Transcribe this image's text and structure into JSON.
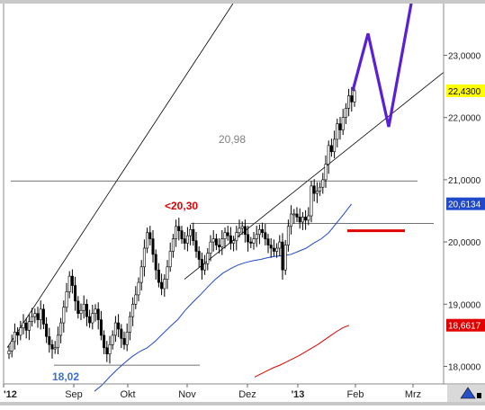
{
  "chart_data": {
    "type": "candlestick",
    "title": "",
    "xlabel": "",
    "ylabel": "",
    "ylim": [
      17.75,
      24.1
    ],
    "x_ticks": [
      "'12",
      "Sep",
      "Okt",
      "Nov",
      "Dez",
      "'13",
      "Feb",
      "Mrz"
    ],
    "y_ticks": [
      "18,0000",
      "19,0000",
      "20,0000",
      "21,0000",
      "22,0000",
      "23,0000"
    ],
    "y_tick_values": [
      18.0,
      19.0,
      20.0,
      21.0,
      22.0,
      23.0
    ],
    "price_tags": [
      {
        "label": "22,4300",
        "value": 22.43,
        "color": "#ffff00",
        "text_color": "#000000"
      },
      {
        "label": "20,6134",
        "value": 20.6134,
        "color": "#1f49c8",
        "text_color": "#ffffff"
      },
      {
        "label": "18,6617",
        "value": 18.6617,
        "color": "#e00000",
        "text_color": "#ffffff"
      }
    ],
    "annotations": [
      {
        "text": "20,98",
        "value": 20.98,
        "color": "#808080"
      },
      {
        "text": "<20,30",
        "value": 20.3,
        "color": "#e00000"
      },
      {
        "text": "18,02",
        "value": 18.02,
        "color": "#3a6fd0"
      }
    ],
    "horizontal_levels": [
      20.98,
      20.3,
      18.02
    ],
    "red_support_level": 20.18,
    "price_series": {
      "name": "",
      "color": "#000000",
      "close": [
        18.25,
        18.4,
        18.55,
        18.5,
        18.62,
        18.7,
        18.58,
        18.72,
        18.8,
        18.85,
        18.75,
        18.92,
        18.68,
        18.48,
        18.35,
        18.28,
        18.3,
        18.5,
        18.7,
        18.95,
        19.2,
        19.45,
        19.3,
        19.05,
        18.85,
        18.9,
        19.0,
        18.8,
        18.7,
        18.85,
        18.92,
        18.75,
        18.5,
        18.3,
        18.2,
        18.35,
        18.5,
        18.7,
        18.6,
        18.45,
        18.35,
        18.55,
        18.8,
        19.0,
        19.15,
        19.35,
        19.6,
        19.9,
        20.15,
        20.05,
        19.8,
        19.55,
        19.35,
        19.25,
        19.4,
        19.6,
        19.85,
        20.05,
        20.25,
        20.18,
        20.05,
        19.98,
        20.1,
        20.2,
        20.02,
        19.85,
        19.72,
        19.55,
        19.65,
        19.82,
        20.0,
        20.05,
        19.95,
        19.92,
        20.05,
        20.15,
        20.1,
        19.98,
        20.02,
        20.15,
        20.22,
        20.25,
        20.12,
        20.0,
        19.98,
        20.05,
        20.12,
        20.2,
        20.15,
        20.05,
        19.95,
        19.9,
        19.85,
        19.9,
        20.0,
        19.55,
        19.95,
        20.25,
        20.45,
        20.45,
        20.4,
        20.32,
        20.4,
        20.35,
        20.42,
        20.9,
        20.78,
        20.82,
        20.88,
        21.0,
        21.25,
        21.55,
        21.45,
        21.65,
        21.9,
        21.8,
        22.0,
        22.15,
        22.35,
        22.25,
        22.43
      ]
    },
    "blue_series": {
      "name": "",
      "color": "#1f49c8",
      "values": [
        17.6,
        17.7,
        17.83,
        17.95,
        18.06,
        18.16,
        18.24,
        18.3,
        18.4,
        18.52,
        18.64,
        18.75,
        18.9,
        19.03,
        19.15,
        19.28,
        19.4,
        19.5,
        19.57,
        19.63,
        19.67,
        19.7,
        19.72,
        19.75,
        19.77,
        19.78,
        19.8,
        19.85,
        19.9,
        19.98,
        20.05,
        20.15,
        20.3,
        20.45,
        20.61
      ]
    },
    "red_series": {
      "name": "",
      "color": "#e00000",
      "values": [
        17.83,
        17.88,
        17.93,
        17.98,
        18.02,
        18.07,
        18.12,
        18.17,
        18.23,
        18.29,
        18.35,
        18.42,
        18.49,
        18.56,
        18.62,
        18.66
      ]
    },
    "trend_channel": {
      "lower_line": [
        [
          19.4,
          18.0
        ],
        [
          19.5,
          23.5
        ]
      ],
      "upper_line": [
        [
          18.3,
          20.2
        ],
        [
          19.5,
          26.5
        ]
      ]
    },
    "forecast_path": [
      22.43,
      23.35,
      21.85,
      24.15
    ]
  }
}
